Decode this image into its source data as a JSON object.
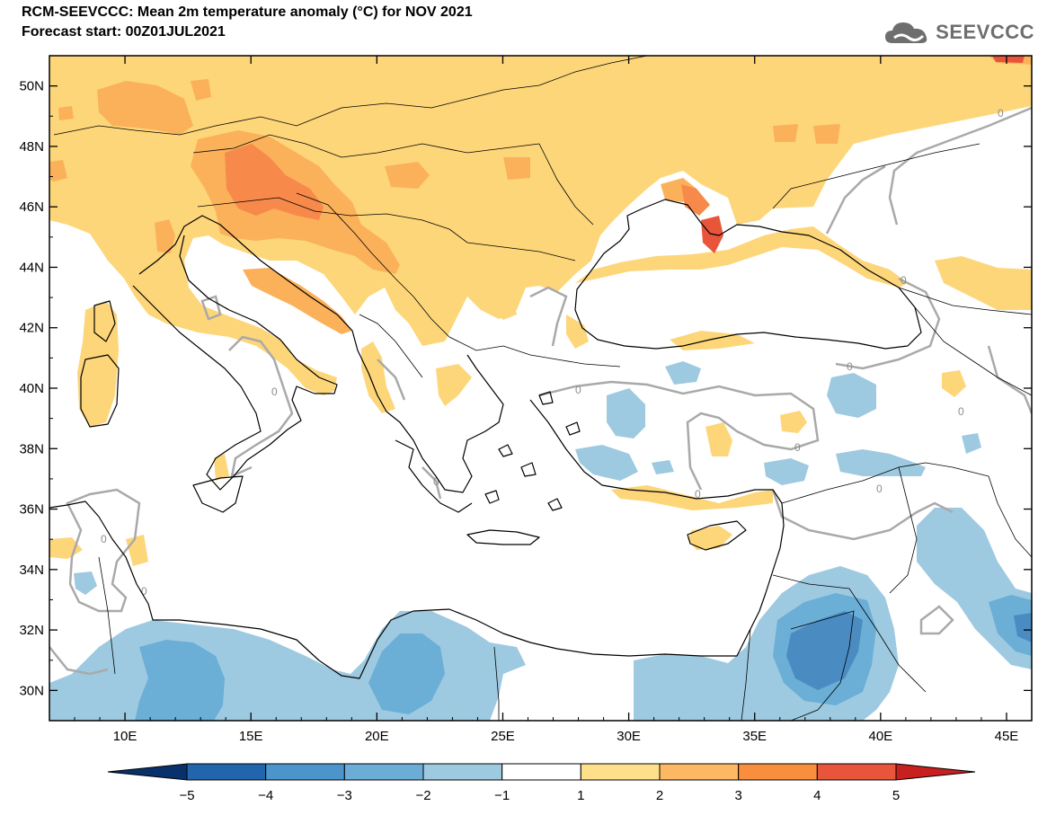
{
  "title": {
    "line1": "RCM-SEEVCCC: Mean 2m temperature anomaly (°C) for NOV 2021",
    "line2": "Forecast start: 00Z01JUL2021"
  },
  "logo": {
    "text": "SEEVCCC",
    "icon": "cloud-icon"
  },
  "map": {
    "lon_range": [
      7,
      46
    ],
    "lat_range": [
      29,
      51
    ],
    "lon_ticks": [
      "10E",
      "15E",
      "20E",
      "25E",
      "30E",
      "35E",
      "40E",
      "45E"
    ],
    "lat_ticks": [
      "50N",
      "48N",
      "46N",
      "44N",
      "42N",
      "40N",
      "38N",
      "36N",
      "34N",
      "32N",
      "30N"
    ],
    "contour_label": "0"
  },
  "colorbar": {
    "ticks": [
      "−5",
      "−4",
      "−3",
      "−2",
      "−1",
      "1",
      "2",
      "3",
      "4",
      "5"
    ],
    "colors": [
      "#08306b",
      "#2166ac",
      "#4b94cc",
      "#6badd6",
      "#9ecae1",
      "#ffffff",
      "#fee08b",
      "#fdb863",
      "#f98e3f",
      "#e8553a",
      "#c81f1f"
    ]
  },
  "palette": {
    "warm1": "#fdd67a",
    "warm2": "#fbb15a",
    "warm3": "#f7894a",
    "warm4": "#e8553a",
    "cool1": "#9ecae1",
    "cool2": "#6baed6",
    "cool3": "#4a8cc2",
    "contour": "#a9a9a9"
  }
}
